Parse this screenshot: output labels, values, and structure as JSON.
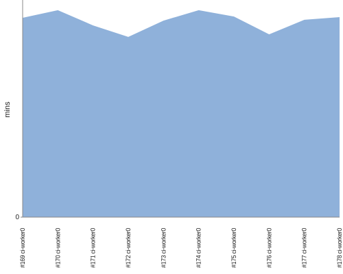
{
  "chart_data": {
    "type": "area",
    "ylabel": "mins",
    "categories": [
      "#169 ci-worker0",
      "#170 ci-worker0",
      "#171 ci-worker0",
      "#172 ci-worker0",
      "#173 ci-worker0",
      "#174 ci-worker0",
      "#175 ci-worker0",
      "#176 ci-worker0",
      "#177 ci-worker0",
      "#178 ci-worker0"
    ],
    "values": [
      91.8,
      95.3,
      88.3,
      83.0,
      90.5,
      95.3,
      92.4,
      84.2,
      90.9,
      92.1
    ],
    "color": "#8fb1da",
    "ylim": [
      0,
      100
    ],
    "yticks": [
      0
    ]
  }
}
